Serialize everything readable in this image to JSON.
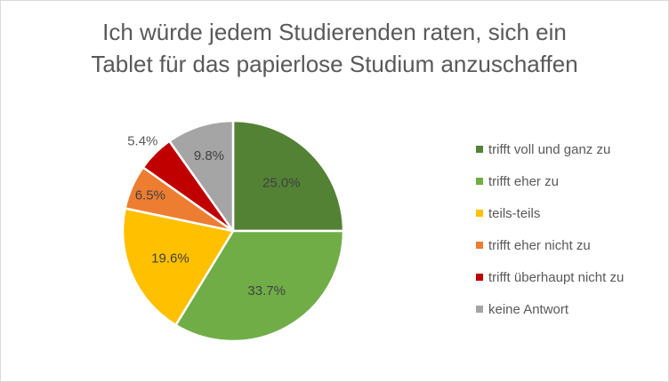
{
  "chart_data": {
    "type": "pie",
    "title_lines": [
      "Ich würde jedem Studierenden raten, sich ein",
      "Tablet für das papierlose Studium anzuschaffen"
    ],
    "categories": [
      "trifft voll und ganz zu",
      "trifft eher zu",
      "teils-teils",
      "trifft eher nicht zu",
      "trifft überhaupt nicht zu",
      "keine Antwort"
    ],
    "values": [
      25.0,
      33.7,
      19.6,
      6.5,
      5.4,
      9.8
    ],
    "labels": [
      "25.0%",
      "33.7%",
      "19.6%",
      "6.5%",
      "5.4%",
      "9.8%"
    ],
    "colors": [
      "#548235",
      "#70ad47",
      "#ffc000",
      "#ed7d31",
      "#c00000",
      "#a5a5a5"
    ],
    "legend_position": "right"
  }
}
